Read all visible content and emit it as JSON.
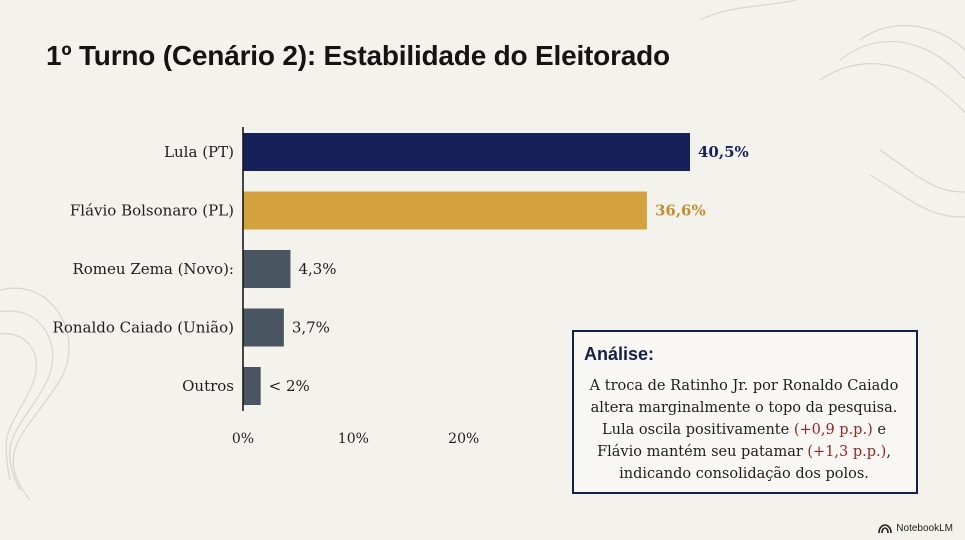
{
  "title": "1º Turno (Cenário 2): Estabilidade do Eleitorado",
  "chart_data": {
    "type": "bar",
    "orientation": "horizontal",
    "categories": [
      "Lula (PT)",
      "Flávio Bolsonaro (PL)",
      "Romeu Zema (Novo):",
      "Ronaldo Caiado (União)",
      "Outros"
    ],
    "values": [
      40.5,
      36.6,
      4.3,
      3.7,
      1.6
    ],
    "value_labels": [
      "40,5%",
      "36,6%",
      "4,3%",
      "3,7%",
      "< 2%"
    ],
    "colors": [
      "#16215a",
      "#d3a23f",
      "#495560",
      "#495560",
      "#495560"
    ],
    "label_colors": [
      "#16215a",
      "#c2902c",
      "#1e1e1e",
      "#1e1e1e",
      "#1e1e1e"
    ],
    "x_ticks": [
      0,
      10,
      20
    ],
    "x_tick_labels": [
      "0%",
      "10%",
      "20%"
    ],
    "xlim": [
      0,
      40.5
    ],
    "grid": false,
    "legend": "none"
  },
  "analysis": {
    "heading": "Análise:",
    "line1": "A troca de Ratinho Jr. por Ronaldo Caiado altera marginalmente o topo da pesquisa. Lula oscila positivamente ",
    "hl1": "(+0,9 p.p.)",
    "line2": " e Flávio mantém seu patamar ",
    "hl2": "(+1,3 p.p.)",
    "line3": ", indicando consolidação dos polos."
  },
  "brand": "NotebookLM",
  "brand_icon": "notebooklm-logo-icon"
}
